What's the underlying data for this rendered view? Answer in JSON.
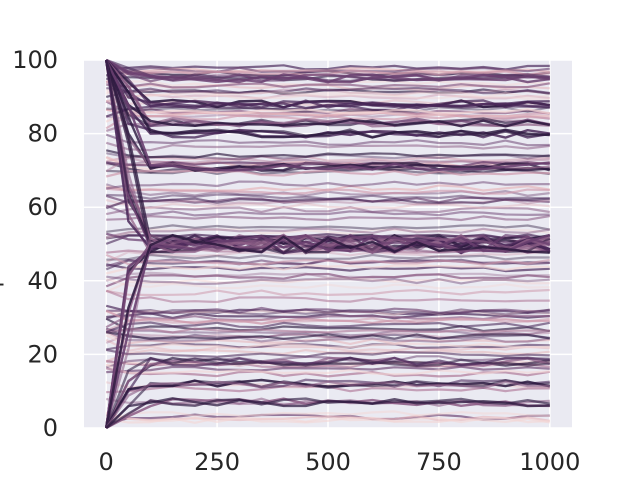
{
  "chart_data": {
    "type": "line",
    "title": "",
    "xlabel": "",
    "ylabel": "",
    "xlim": [
      -50,
      1050
    ],
    "ylim": [
      0,
      100
    ],
    "x_ticks": [
      0,
      250,
      500,
      750,
      1000
    ],
    "x_tick_labels": [
      "0",
      "250",
      "500",
      "750",
      "1000"
    ],
    "y_ticks": [
      0,
      20,
      40,
      60,
      80,
      100
    ],
    "y_tick_labels": [
      "0",
      "20",
      "40",
      "60",
      "80",
      "100"
    ],
    "grid": true,
    "legend": "none",
    "style": {
      "plot_background": "#eaeaf2",
      "grid_color": "#ffffff",
      "palette": [
        "#f4d6d4",
        "#e6b8bd",
        "#cf98ab",
        "#b07a99",
        "#8d5e86",
        "#693f6f",
        "#482758",
        "#2d1a40"
      ]
    },
    "x": [
      0,
      50,
      100,
      150,
      200,
      250,
      300,
      350,
      400,
      450,
      500,
      550,
      600,
      650,
      700,
      750,
      800,
      850,
      900,
      950,
      1000
    ],
    "series_groups": [
      {
        "level": 95,
        "start": 100
      },
      {
        "level": 88,
        "start": 100
      },
      {
        "level": 83,
        "start": 100
      },
      {
        "level": 80,
        "start": 100
      },
      {
        "level": 71,
        "start": 100
      },
      {
        "level": 50,
        "start": 100
      },
      {
        "level": 50,
        "start": 0
      },
      {
        "level": 18,
        "start": 0
      },
      {
        "level": 12,
        "start": 0
      },
      {
        "level": 7,
        "start": 0
      }
    ]
  }
}
